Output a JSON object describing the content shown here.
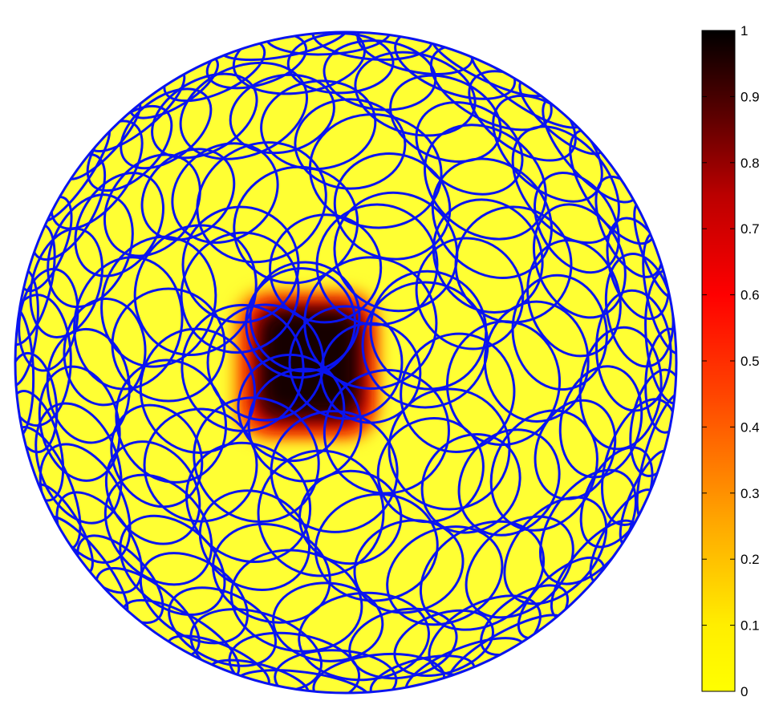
{
  "chart_data": {
    "type": "heatmap",
    "title": "",
    "xlabel": "",
    "ylabel": "",
    "surface": "sphere",
    "base_color": "#ffff33",
    "outline_color": "#0a14f0",
    "colorbar": {
      "colormap": "hot (reversed: 0 = yellow, 1 = black)",
      "clim": [
        0,
        1
      ],
      "ticks": [
        "0",
        "0.1",
        "0.2",
        "0.3",
        "0.4",
        "0.5",
        "0.6",
        "0.7",
        "0.8",
        "0.9",
        "1"
      ],
      "stops": [
        {
          "value": 0,
          "color": "#ffff00"
        },
        {
          "value": 0.1,
          "color": "#ffee00"
        },
        {
          "value": 0.25,
          "color": "#ffaa00"
        },
        {
          "value": 0.45,
          "color": "#ff4400"
        },
        {
          "value": 0.6,
          "color": "#ff0000"
        },
        {
          "value": 0.75,
          "color": "#bb0000"
        },
        {
          "value": 0.88,
          "color": "#550000"
        },
        {
          "value": 1,
          "color": "#000000"
        }
      ]
    },
    "hotspot": {
      "peak_value": 1,
      "background_value": 0,
      "note_location": "upper-left of center"
    }
  }
}
